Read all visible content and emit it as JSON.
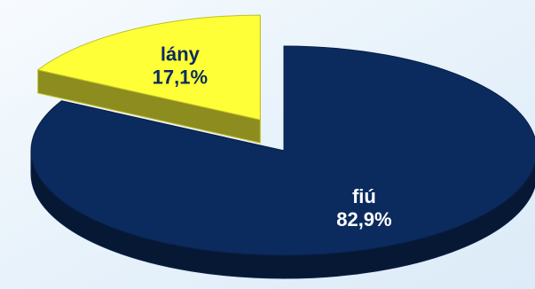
{
  "chart_data": {
    "type": "pie",
    "title": "",
    "slices": [
      {
        "label": "fiú",
        "value": 82.9,
        "display": "82,9%",
        "color": "#0b2b5e",
        "label_color": "#ffffff",
        "exploded": false
      },
      {
        "label": "lány",
        "value": 17.1,
        "display": "17,1%",
        "color": "#ffff38",
        "label_color": "#0b2b5e",
        "exploded": true
      }
    ],
    "style": "3d",
    "background": "gradient-light-blue"
  }
}
